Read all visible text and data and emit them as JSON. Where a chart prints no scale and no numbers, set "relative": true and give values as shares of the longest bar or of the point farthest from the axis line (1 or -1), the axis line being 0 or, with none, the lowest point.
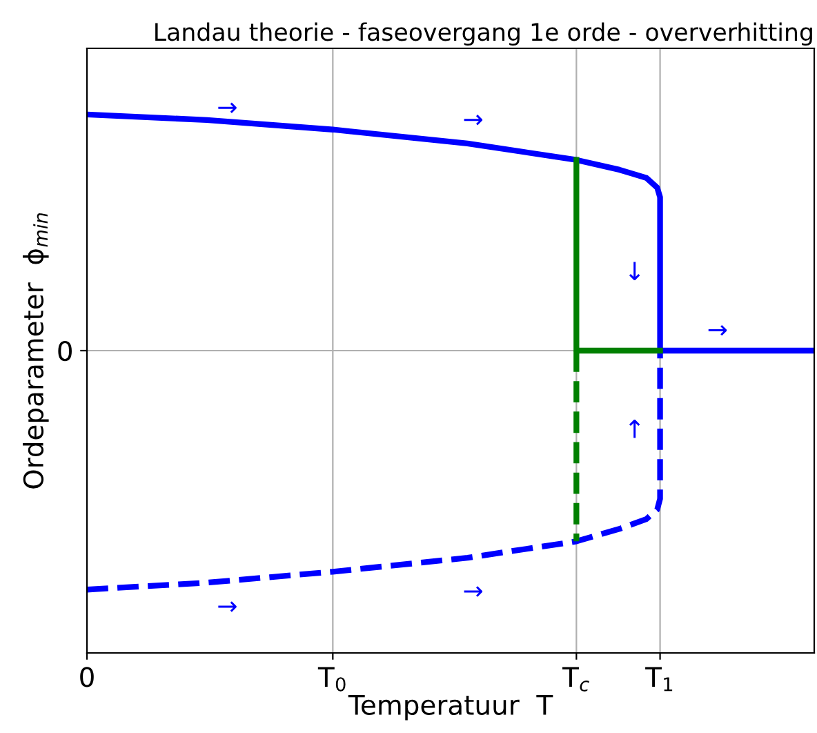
{
  "chart_data": {
    "type": "line",
    "title": "Landau theorie - faseovergang 1e orde - oververhitting",
    "xlabel": "Temperatuur  T",
    "ylabel": "Ordeparameter  ϕ$_{min}$",
    "relative": true,
    "xlim": [
      0,
      1.269
    ],
    "xticks": [
      0,
      {
        "value": 0.429,
        "label": "T$_{0}$"
      },
      {
        "value": 0.854,
        "label": "T$_{c}$"
      },
      {
        "value": 1.0,
        "label": "T$_{1}$"
      }
    ],
    "grid": true,
    "marker": "none",
    "series": [
      {
        "color": "#0000ff",
        "line_style": "solid",
        "x": [
          0,
          0.209,
          0.429,
          0.664,
          0.854,
          0.929,
          0.976,
          0.995,
          1.0,
          1.0,
          1.269
        ],
        "values": [
          0.988,
          0.965,
          0.925,
          0.867,
          0.798,
          0.757,
          0.723,
          0.682,
          0.642,
          0,
          0
        ]
      },
      {
        "color": "#0000ff",
        "line_style": "dashed",
        "x": [
          0,
          0.209,
          0.429,
          0.664,
          0.854,
          0.929,
          0.976,
          0.995,
          1.0,
          1.0
        ],
        "values": [
          -1.0,
          -0.971,
          -0.925,
          -0.867,
          -0.798,
          -0.746,
          -0.705,
          -0.665,
          -0.62,
          0
        ]
      },
      {
        "color": "#008000",
        "line_style": "solid",
        "x": [
          0.854,
          0.854,
          1.0
        ],
        "values": [
          0.798,
          0,
          0
        ]
      },
      {
        "color": "#008000",
        "line_style": "dashed",
        "x": [
          0.854,
          0.854
        ],
        "values": [
          0,
          -0.798
        ]
      }
    ],
    "annotations": [
      "0",
      "→",
      "→",
      "↓",
      "→",
      "↑",
      "→",
      "→"
    ]
  }
}
